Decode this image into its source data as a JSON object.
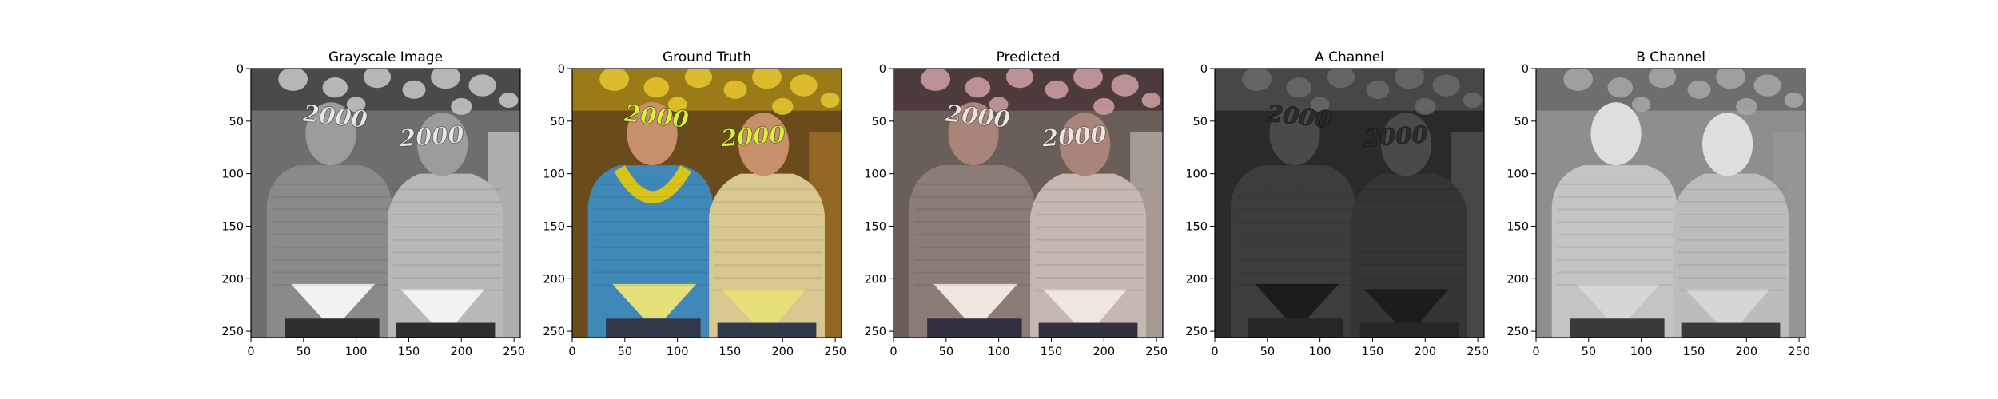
{
  "chart_data": [
    {
      "type": "image",
      "title": "Grayscale Image",
      "xticks": [
        0,
        50,
        100,
        150,
        200,
        250
      ],
      "yticks": [
        0,
        50,
        100,
        150,
        200,
        250
      ],
      "xlim": [
        0,
        256
      ],
      "ylim": [
        256,
        0
      ],
      "overlay_text": [
        "2000",
        "2000"
      ]
    },
    {
      "type": "image",
      "title": "Ground Truth",
      "xticks": [
        0,
        50,
        100,
        150,
        200,
        250
      ],
      "yticks": [
        0,
        50,
        100,
        150,
        200,
        250
      ],
      "xlim": [
        0,
        256
      ],
      "ylim": [
        256,
        0
      ],
      "overlay_text": [
        "2000",
        "2000"
      ]
    },
    {
      "type": "image",
      "title": "Predicted",
      "xticks": [
        0,
        50,
        100,
        150,
        200,
        250
      ],
      "yticks": [
        0,
        50,
        100,
        150,
        200,
        250
      ],
      "xlim": [
        0,
        256
      ],
      "ylim": [
        256,
        0
      ],
      "overlay_text": [
        "2000",
        "2000"
      ]
    },
    {
      "type": "image",
      "title": "A Channel",
      "xticks": [
        0,
        50,
        100,
        150,
        200,
        250
      ],
      "yticks": [
        0,
        50,
        100,
        150,
        200,
        250
      ],
      "xlim": [
        0,
        256
      ],
      "ylim": [
        256,
        0
      ],
      "overlay_text": [
        "2000",
        "2000"
      ]
    },
    {
      "type": "image",
      "title": "B Channel",
      "xticks": [
        0,
        50,
        100,
        150,
        200,
        250
      ],
      "yticks": [
        0,
        50,
        100,
        150,
        200,
        250
      ],
      "xlim": [
        0,
        256
      ],
      "ylim": [
        256,
        0
      ],
      "overlay_text": []
    }
  ],
  "palettes": [
    {
      "bg": "#6e6e6e",
      "top": "#4a4a4a",
      "lamps": "#c9c9c9",
      "shirtL": "#8a8a8a",
      "shirtR": "#b8b8b8",
      "skin": "#9c9c9c",
      "under": "#f2f2f2",
      "jeans": "#2e2e2e",
      "right": "#d8d8d8",
      "lei": "#8a8a8a",
      "glasses": "#e8e8e8"
    },
    {
      "bg": "#6a4c1c",
      "top": "#9a7b18",
      "lamps": "#e8c830",
      "shirtL": "#3f88b8",
      "shirtR": "#d8c890",
      "skin": "#c8906a",
      "under": "#e6e07a",
      "jeans": "#30384a",
      "right": "#b07828",
      "lei": "#d8c418",
      "glasses": "#d8f040"
    },
    {
      "bg": "#6a5e58",
      "top": "#4e3c3c",
      "lamps": "#d0a0a4",
      "shirtL": "#8c7c78",
      "shirtR": "#c4b8b0",
      "skin": "#a8847a",
      "under": "#efe6e0",
      "jeans": "#323040",
      "right": "#cfc4bc",
      "lei": "#8c7c78",
      "glasses": "#ece6e2"
    },
    {
      "bg": "#2a2a2a",
      "top": "#474747",
      "lamps": "#6a6a6a",
      "shirtL": "#3d3d3d",
      "shirtR": "#353535",
      "skin": "#4a4a4a",
      "under": "#1c1c1c",
      "jeans": "#262626",
      "right": "#5c5c5c",
      "lei": "#3d3d3d",
      "glasses": "#2c2c2c"
    },
    {
      "bg": "#8e8e8e",
      "top": "#6e6e6e",
      "lamps": "#a8a8a8",
      "shirtL": "#c4c4c4",
      "shirtR": "#bcbcbc",
      "skin": "#dedede",
      "under": "#d6d6d6",
      "jeans": "#3a3a3a",
      "right": "#9a9a9a",
      "lei": "#c4c4c4",
      "glasses": "#b0b0b0"
    }
  ]
}
